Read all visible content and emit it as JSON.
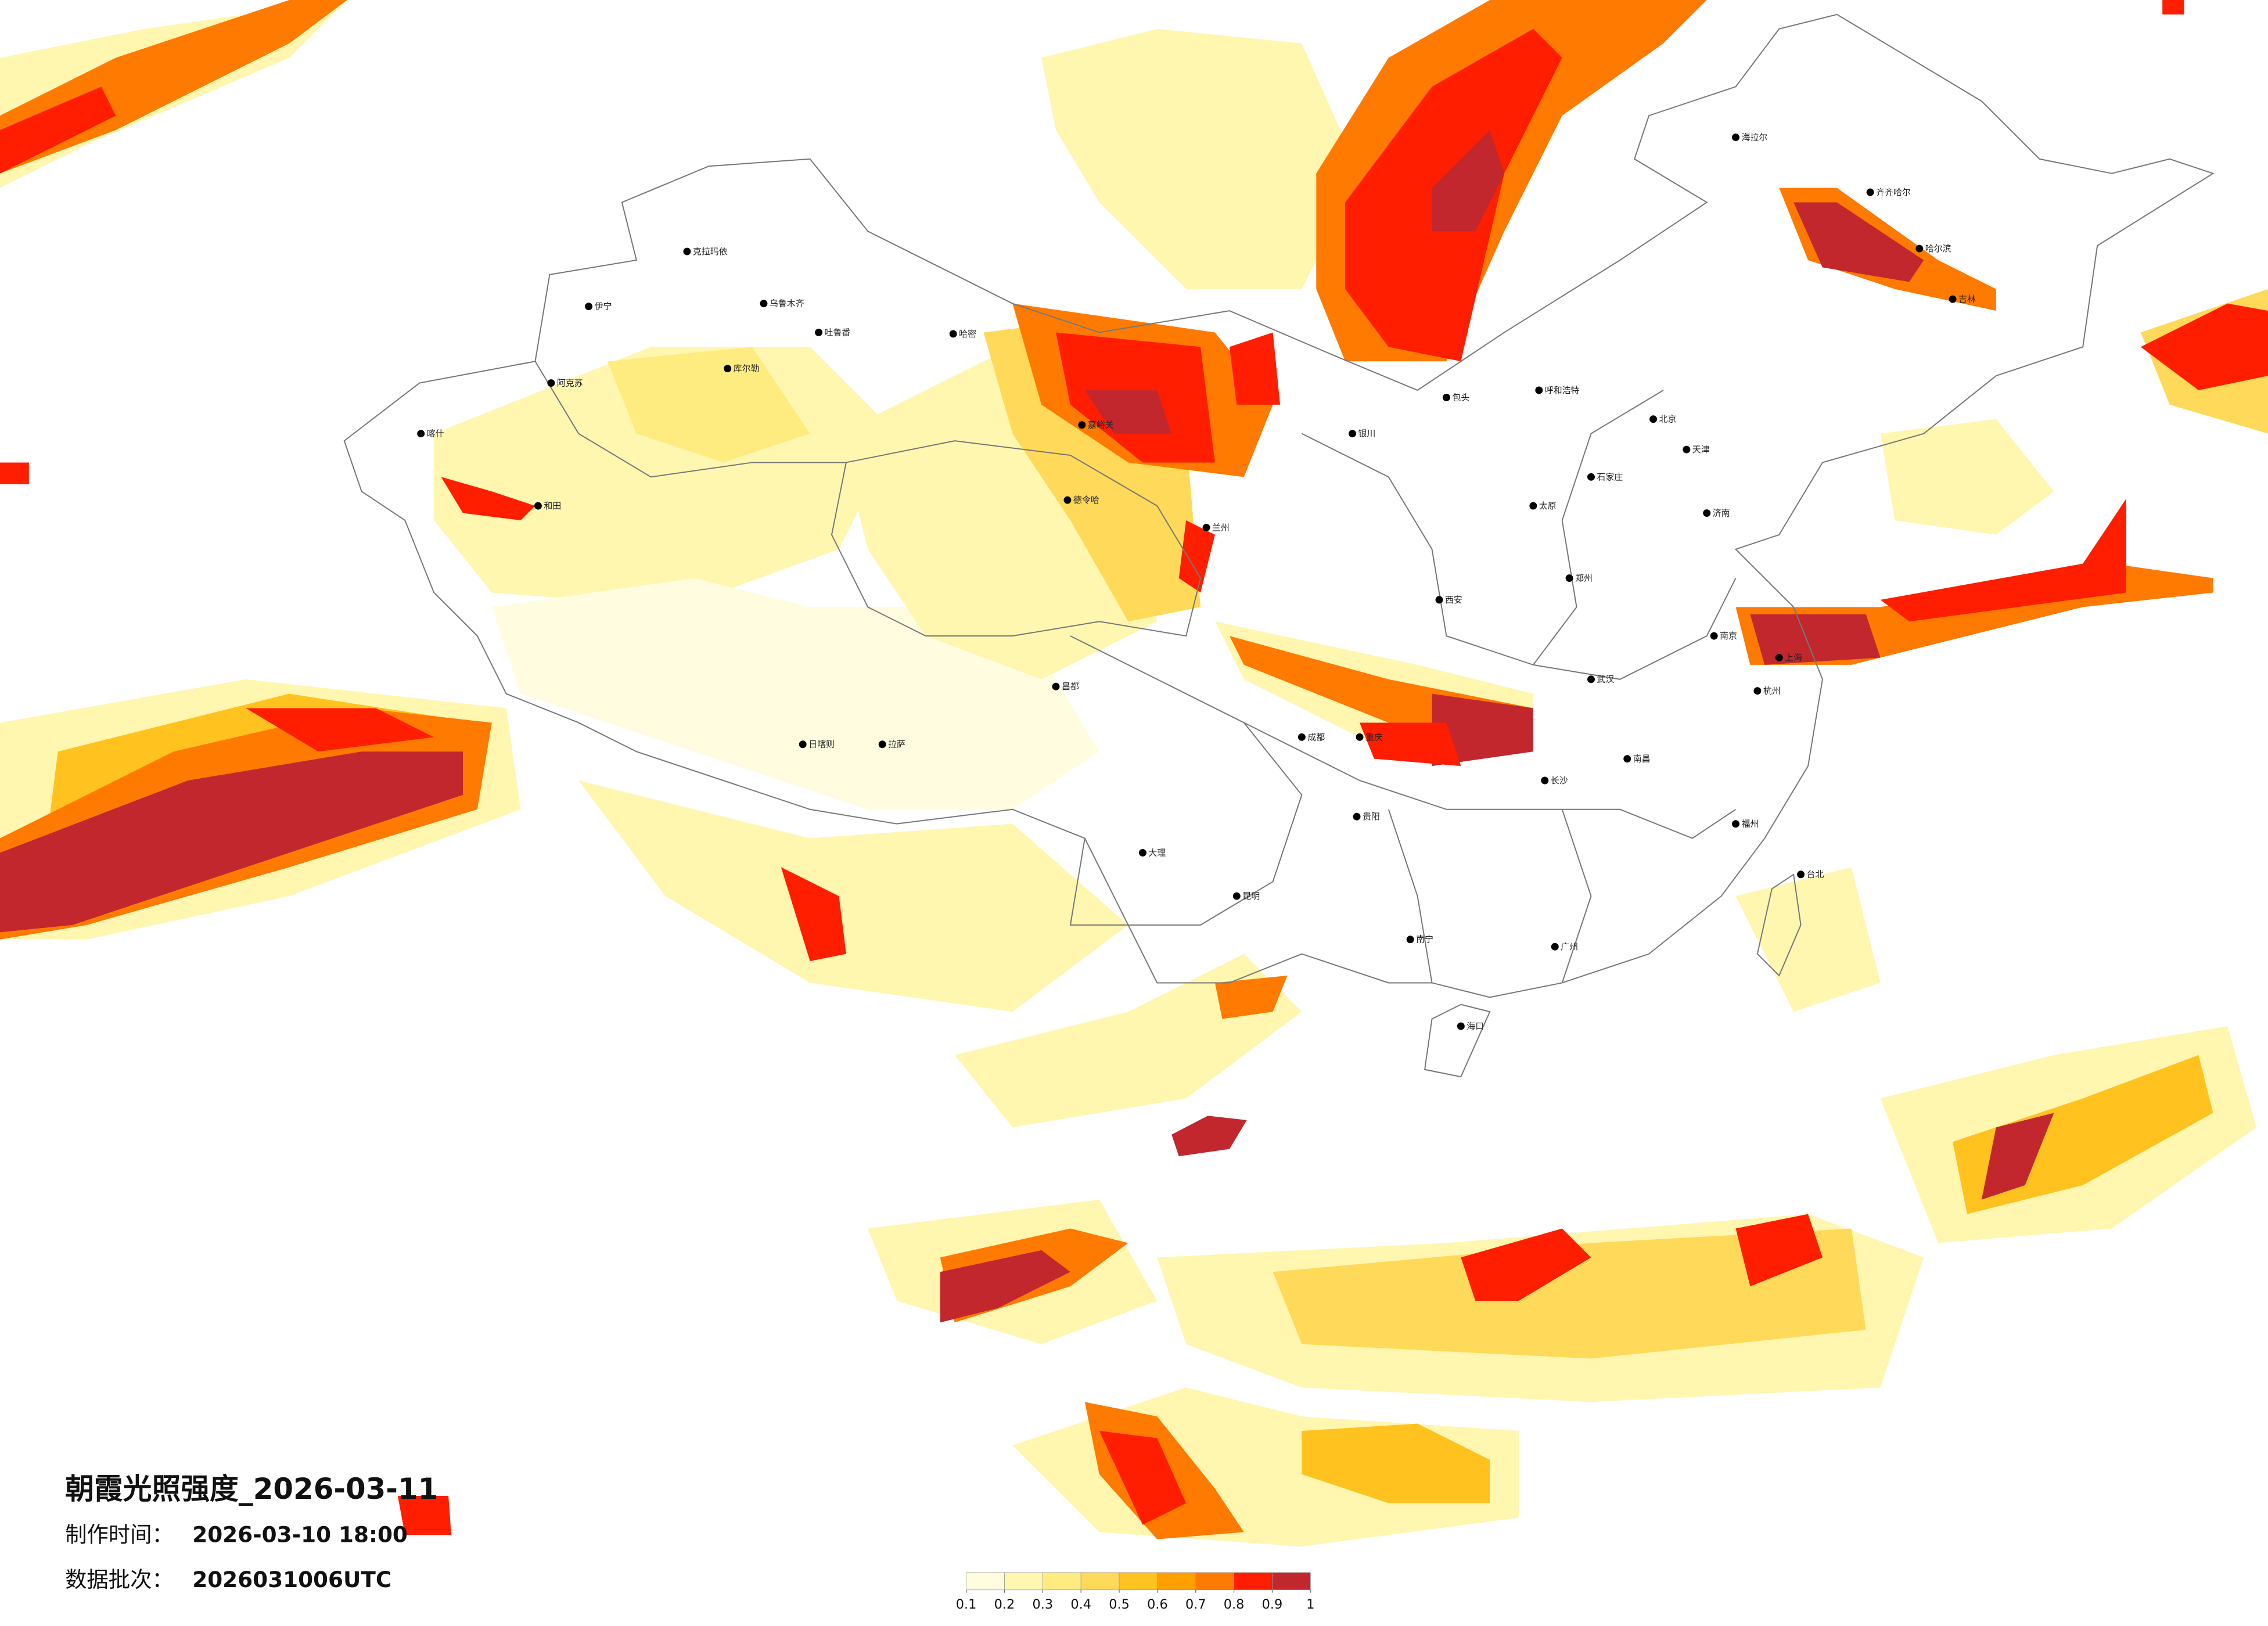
{
  "title": "朝霞光照强度_2026-03-11",
  "info": [
    {
      "label": "制作时间：",
      "value": "2026-03-10 18:00"
    },
    {
      "label": "数据批次：",
      "value": "2026031006UTC"
    }
  ],
  "legend": {
    "colors": [
      "#fffce0",
      "#fff6b0",
      "#ffec80",
      "#ffd95a",
      "#ffc21f",
      "#ff9f00",
      "#ff7a00",
      "#ff1e00",
      "#c1272d"
    ],
    "ticks": [
      0.1,
      0.2,
      0.3,
      0.4,
      0.5,
      0.6,
      0.7,
      0.8,
      0.9,
      1
    ]
  },
  "cities": [
    "克拉玛依",
    "伊宁",
    "乌鲁木齐",
    "吐鲁番",
    "哈密",
    "库尔勒",
    "阿克苏",
    "喀什",
    "和田",
    "嘉峪关",
    "德令哈",
    "海拉尔",
    "齐齐哈尔",
    "哈尔滨",
    "吉林",
    "呼和浩特",
    "包头",
    "北京",
    "天津",
    "石家庄",
    "太原",
    "济南",
    "郑州",
    "西安",
    "兰州",
    "银川",
    "成都",
    "重庆",
    "武汉",
    "南京",
    "上海",
    "杭州",
    "长沙",
    "南昌",
    "福州",
    "贵阳",
    "昆明",
    "南宁",
    "广州",
    "海口",
    "台北",
    "拉萨",
    "日喀则",
    "昌都",
    "大理"
  ]
}
